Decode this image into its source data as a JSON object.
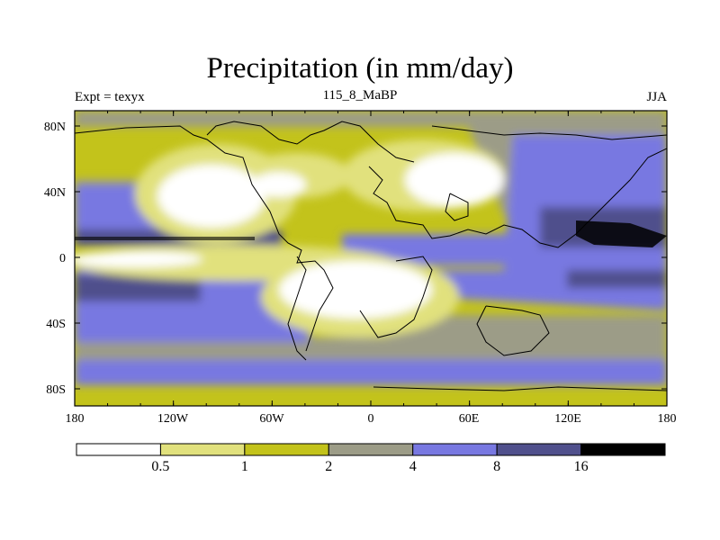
{
  "title": "Precipitation (in mm/day)",
  "left_label": "Expt = texyx",
  "center_label": "115_8_MaBP",
  "right_label": "JJA",
  "lat_labels": [
    "80N",
    "40N",
    "0",
    "40S",
    "80S"
  ],
  "lon_labels": [
    "180",
    "120W",
    "60W",
    "0",
    "60E",
    "120E",
    "180"
  ],
  "colorbar": {
    "colors": [
      "#ffffff",
      "#e1e17d",
      "#c3c31b",
      "#9c9c87",
      "#7878e1",
      "#50508c",
      "#000000"
    ],
    "labels": [
      "0.5",
      "1",
      "2",
      "4",
      "8",
      "16"
    ]
  }
}
